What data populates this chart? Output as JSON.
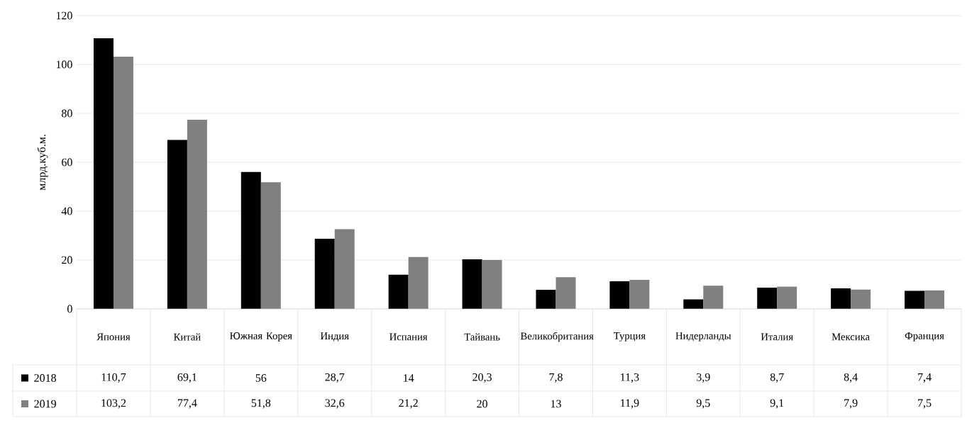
{
  "chart_data": {
    "type": "bar",
    "ylabel": "млрд.куб.м.",
    "categories": [
      "Япония",
      "Китай",
      "Южная Корея",
      "Индия",
      "Испания",
      "Тайвань",
      "Великобритания",
      "Турция",
      "Нидерланды",
      "Италия",
      "Мексика",
      "Франция"
    ],
    "series": [
      {
        "name": "2018",
        "color": "#000000",
        "values": [
          110.7,
          69.1,
          56,
          28.7,
          14,
          20.3,
          7.8,
          11.3,
          3.9,
          8.7,
          8.4,
          7.4
        ],
        "value_labels": [
          "110,7",
          "69,1",
          "56",
          "28,7",
          "14",
          "20,3",
          "7,8",
          "11,3",
          "3,9",
          "8,7",
          "8,4",
          "7,4"
        ]
      },
      {
        "name": "2019",
        "color": "#808080",
        "values": [
          103.2,
          77.4,
          51.8,
          32.6,
          21.2,
          20,
          13,
          11.9,
          9.5,
          9.1,
          7.9,
          7.5
        ],
        "value_labels": [
          "103,2",
          "77,4",
          "51,8",
          "32,6",
          "21,2",
          "20",
          "13",
          "11,9",
          "9,5",
          "9,1",
          "7,9",
          "7,5"
        ]
      }
    ],
    "ylim": [
      0,
      120
    ],
    "yticks": [
      0,
      20,
      40,
      60,
      80,
      100,
      120
    ],
    "grid": "y",
    "legend": "bottom"
  }
}
